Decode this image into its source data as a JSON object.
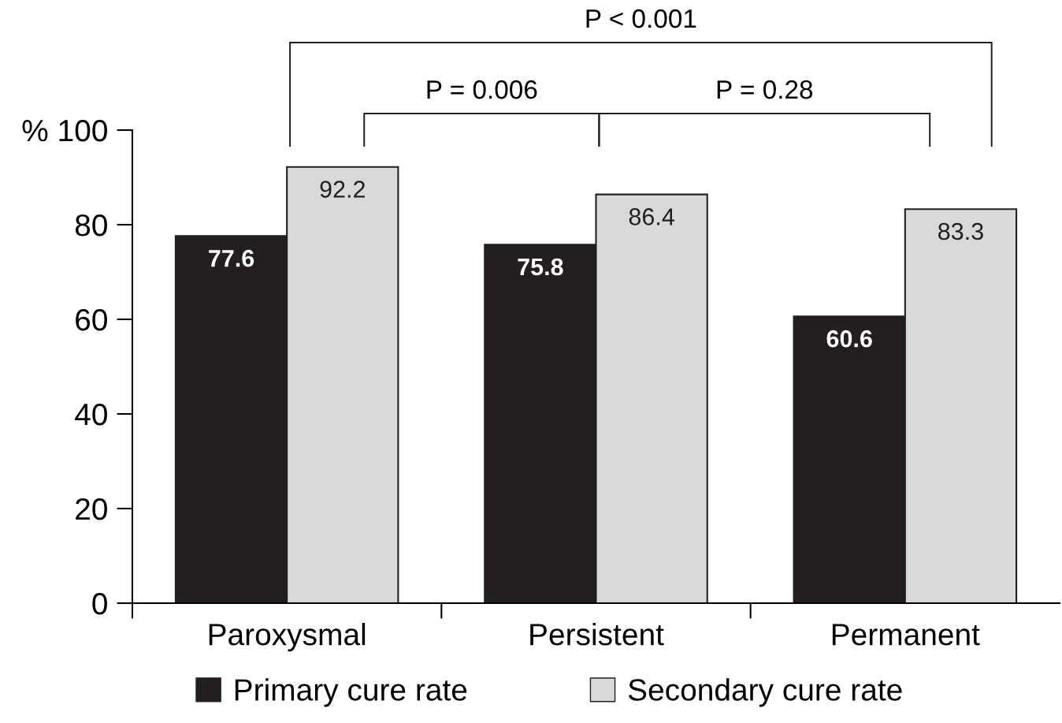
{
  "chart_data": {
    "type": "bar",
    "categories": [
      "Paroxysmal",
      "Persistent",
      "Permanent"
    ],
    "series": [
      {
        "name": "Primary cure rate",
        "color": "#231f20",
        "values": [
          77.6,
          75.8,
          60.6
        ]
      },
      {
        "name": "Secondary cure rate",
        "color": "#d9d9db",
        "values": [
          92.2,
          86.4,
          83.3
        ]
      }
    ],
    "ylim": [
      0,
      100
    ],
    "yticks": [
      0,
      20,
      40,
      60,
      80,
      {
        "value": 100,
        "label": "% 100"
      }
    ],
    "data_labels": true,
    "legend": "bottom",
    "grid": false,
    "annotations": [
      "P < 0.001",
      "P = 0.006",
      "P = 0.28"
    ]
  }
}
